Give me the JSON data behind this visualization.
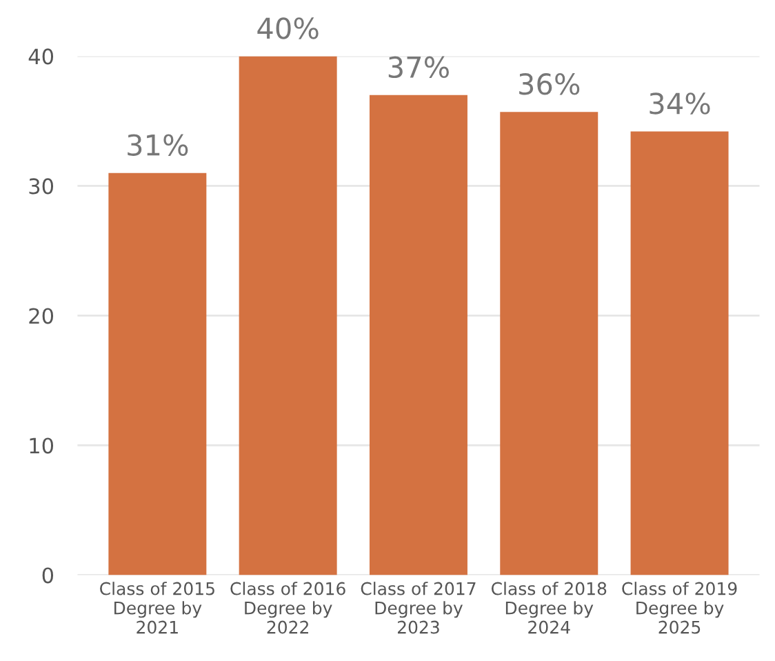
{
  "chart_data": {
    "type": "bar",
    "categories": [
      "Class of 2015\nDegree by\n2021",
      "Class of 2016\nDegree by\n2022",
      "Class of 2017\nDegree by\n2023",
      "Class of 2018\nDegree by\n2024",
      "Class of 2019\nDegree by\n2025"
    ],
    "values": [
      31,
      40,
      37,
      35.7,
      34.2
    ],
    "value_labels": [
      "31%",
      "40%",
      "37%",
      "36%",
      "34%"
    ],
    "color": "#d47241",
    "ylim": [
      0,
      40
    ],
    "yticks": [
      0,
      10,
      20,
      30,
      40
    ],
    "grid": "y"
  }
}
